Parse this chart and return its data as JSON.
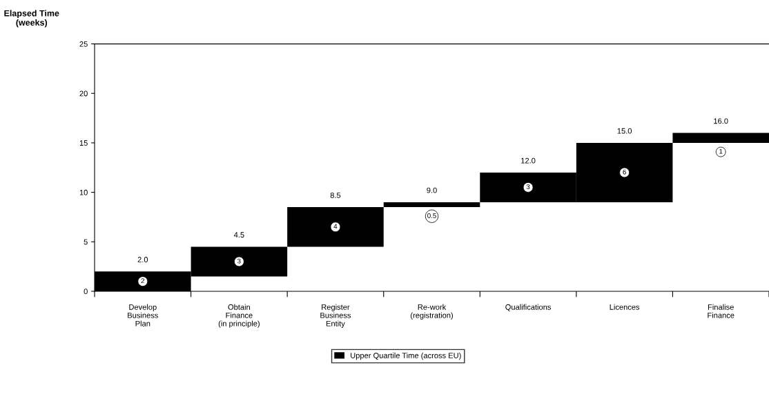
{
  "chart_data": {
    "type": "bar",
    "ylabel": "Elapsed Time\n(weeks)",
    "categories": [
      "Develop\nBusiness\nPlan",
      "Obtain\nFinance\n(in principle)",
      "Register\nBusiness\nEntity",
      "Re-work\n(registration)",
      "Qualifications",
      "Licences",
      "Finalise\nFinance"
    ],
    "series": [
      {
        "name": "Upper Quartile Time (across EU)",
        "color": "#000000",
        "values": [
          2,
          3,
          4,
          0.5,
          3,
          6,
          1
        ],
        "base": [
          0,
          1.5,
          4.5,
          8.5,
          9,
          9,
          15
        ],
        "value_labels": [
          "2",
          "3",
          "4",
          "0.5",
          "3",
          "6",
          "1"
        ]
      }
    ],
    "ylim": [
      0,
      25
    ],
    "yticks": [
      0,
      5,
      10,
      15,
      20,
      25
    ],
    "annotations": [
      {
        "text": "2.0",
        "x": "Develop\nBusiness\nPlan",
        "y": 2
      },
      {
        "text": "4.5",
        "x": "Obtain\nFinance\n(in principle)",
        "y": 4.5
      },
      {
        "text": "8.5",
        "x": "Register\nBusiness\nEntity",
        "y": 8.5
      },
      {
        "text": "9.0",
        "x": "Re-work\n(registration)",
        "y": 9
      },
      {
        "text": "12.0",
        "x": "Qualifications",
        "y": 12
      },
      {
        "text": "15.0",
        "x": "Licences",
        "y": 15
      },
      {
        "text": "16.0",
        "x": "Finalise\nFinance",
        "y": 16
      }
    ],
    "grid": false,
    "legend": "bottom"
  }
}
